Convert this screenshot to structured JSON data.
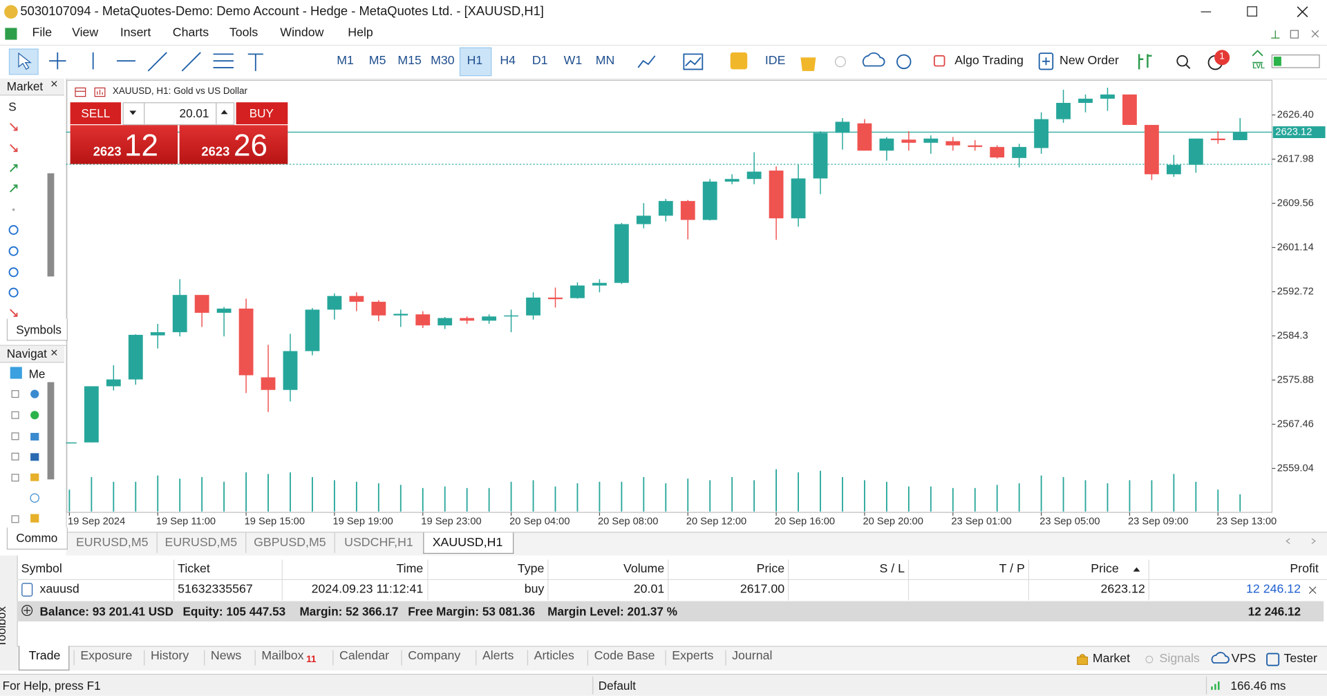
{
  "window": {
    "title": "5030107094 - MetaQuotes-Demo: Demo Account - Hedge - MetaQuotes Ltd. - [XAUUSD,H1]"
  },
  "menu": [
    "File",
    "View",
    "Insert",
    "Charts",
    "Tools",
    "Window",
    "Help"
  ],
  "timeframes": [
    "M1",
    "M5",
    "M15",
    "M30",
    "H1",
    "H4",
    "D1",
    "W1",
    "MN"
  ],
  "active_timeframe": 4,
  "toolbar": {
    "ide": "IDE",
    "algo_trading": "Algo Trading",
    "new_order": "New Order",
    "notifications": 1,
    "level": "LVL"
  },
  "market_watch": {
    "title": "Market",
    "column": "S",
    "tab": "Symbols"
  },
  "navigator": {
    "title": "Navigat",
    "root": "Me",
    "tab": "Commo"
  },
  "chart": {
    "type": "candlestick",
    "header": "XAUUSD, H1:  Gold vs US Dollar",
    "one_click": {
      "sell": "SELL",
      "buy": "BUY",
      "volume": "20.01",
      "bid_main": "2623",
      "bid_big": "12",
      "ask_main": "2623",
      "ask_big": "26"
    },
    "colors": {
      "up": "#26a69a",
      "down": "#ef5350"
    },
    "categories": [
      "19 Sep 2024",
      null,
      null,
      null,
      "19 Sep 11:00",
      null,
      null,
      null,
      "19 Sep 15:00",
      null,
      null,
      null,
      "19 Sep 19:00",
      null,
      null,
      null,
      "19 Sep 23:00",
      null,
      null,
      null,
      "20 Sep 04:00",
      null,
      null,
      null,
      "20 Sep 08:00",
      null,
      null,
      null,
      "20 Sep 12:00",
      null,
      null,
      null,
      "20 Sep 16:00",
      null,
      null,
      null,
      "20 Sep 20:00",
      null,
      null,
      null,
      "23 Sep 01:00",
      null,
      null,
      null,
      "23 Sep 05:00",
      null,
      null,
      null,
      "23 Sep 09:00",
      null,
      null,
      null,
      "23 Sep 13:00",
      null
    ],
    "open": [
      2564.0,
      2564.0,
      2574.7,
      2576.0,
      2584.4,
      2585.0,
      2592.1,
      2588.7,
      2589.5,
      2576.4,
      2574.0,
      2581.4,
      2589.3,
      2591.9,
      2590.8,
      2588.2,
      2588.4,
      2586.3,
      2587.7,
      2587.2,
      2588.0,
      2588.2,
      2591.6,
      2591.5,
      2593.9,
      2594.4,
      2605.6,
      2607.2,
      2610.0,
      2606.4,
      2613.7,
      2614.2,
      2615.8,
      2606.7,
      2614.3,
      2623.0,
      2624.8,
      2619.6,
      2621.7,
      2621.1,
      2621.4,
      2620.6,
      2620.3,
      2618.2,
      2620.1,
      2625.6,
      2628.7,
      2629.5,
      2630.3,
      2624.5,
      2615.1,
      2616.9,
      2621.9,
      2621.6
    ],
    "high": [
      2564.0,
      2574.7,
      2578.7,
      2584.6,
      2586.6,
      2595.1,
      2592.1,
      2589.8,
      2591.4,
      2582.6,
      2584.7,
      2589.6,
      2592.4,
      2592.6,
      2591.1,
      2589.3,
      2589.0,
      2587.9,
      2588.0,
      2588.4,
      2589.3,
      2592.6,
      2593.5,
      2594.5,
      2595.1,
      2605.8,
      2609.6,
      2610.4,
      2610.2,
      2614.2,
      2615.1,
      2619.3,
      2616.6,
      2616.9,
      2623.3,
      2625.8,
      2625.6,
      2622.2,
      2623.3,
      2622.5,
      2622.2,
      2621.6,
      2620.6,
      2620.9,
      2626.9,
      2631.2,
      2630.3,
      2631.6,
      2630.3,
      2624.5,
      2618.8,
      2621.9,
      2623.3,
      2625.8
    ],
    "low": [
      2563.8,
      2564.0,
      2573.9,
      2575.0,
      2581.9,
      2584.2,
      2586.0,
      2584.2,
      2573.4,
      2569.8,
      2571.8,
      2580.6,
      2587.4,
      2589.0,
      2587.1,
      2586.0,
      2585.8,
      2585.6,
      2586.6,
      2586.6,
      2585.0,
      2587.4,
      2589.7,
      2591.4,
      2592.6,
      2594.2,
      2604.8,
      2606.1,
      2602.7,
      2606.3,
      2613.2,
      2613.2,
      2602.6,
      2605.1,
      2611.3,
      2619.8,
      2619.6,
      2617.7,
      2619.6,
      2619.0,
      2619.6,
      2619.6,
      2618.1,
      2616.4,
      2619.0,
      2624.9,
      2626.9,
      2627.2,
      2624.5,
      2614.0,
      2614.6,
      2615.4,
      2620.9,
      2621.6
    ],
    "close": [
      2564.0,
      2574.7,
      2576.0,
      2584.5,
      2585.0,
      2592.1,
      2588.7,
      2589.5,
      2576.8,
      2574.0,
      2581.4,
      2589.3,
      2591.9,
      2590.8,
      2588.2,
      2588.5,
      2586.3,
      2587.7,
      2587.2,
      2588.0,
      2588.2,
      2591.6,
      2591.3,
      2593.9,
      2594.4,
      2605.6,
      2607.2,
      2610.0,
      2606.4,
      2613.7,
      2614.2,
      2615.6,
      2606.7,
      2614.3,
      2623.0,
      2625.1,
      2619.6,
      2621.9,
      2621.1,
      2621.9,
      2620.6,
      2620.3,
      2618.3,
      2620.3,
      2625.6,
      2628.7,
      2629.5,
      2630.3,
      2624.5,
      2615.1,
      2616.9,
      2621.9,
      2621.6,
      2623.12
    ],
    "volumes": [
      28,
      44,
      38,
      38,
      46,
      42,
      44,
      38,
      50,
      48,
      50,
      44,
      40,
      38,
      36,
      34,
      30,
      32,
      30,
      30,
      38,
      40,
      32,
      36,
      38,
      38,
      44,
      36,
      42,
      40,
      44,
      40,
      54,
      50,
      52,
      44,
      40,
      38,
      32,
      32,
      30,
      30,
      34,
      36,
      46,
      44,
      40,
      36,
      40,
      40,
      48,
      38,
      28,
      22
    ],
    "ylim": [
      2550.67,
      2633.0
    ],
    "yticks": [
      {
        "value": 2626.4,
        "label": "2626.40"
      },
      2617.98,
      2609.56,
      2601.14,
      2592.72,
      2584.3,
      2575.88,
      2567.46,
      2559.04
    ],
    "bid": 2623.12,
    "position_price": 2617
  },
  "chart_tabs": [
    "EURUSD,M5",
    "EURUSD,M5",
    "GBPUSD,M5",
    "USDCHF,H1",
    "XAUUSD,H1"
  ],
  "active_chart_tab": 4,
  "toolbox": {
    "label": "Toolbox",
    "columns": [
      "Symbol",
      "Ticket",
      "Time",
      "Type",
      "Volume",
      "Price",
      "S / L",
      "T / P",
      "Price",
      "Profit"
    ],
    "position": {
      "symbol": "xauusd",
      "ticket": "51632335567",
      "time": "2024.09.23 11:12:41",
      "type": "buy",
      "volume": "20.01",
      "price": "2617.00",
      "current_price": "2623.12",
      "profit": "12 246.12"
    },
    "summary": [
      "Balance: 93 201.41 USD",
      "Equity: 105 447.53",
      "Margin: 52 366.17",
      "Free Margin: 53 081.36",
      "Margin Level: 201.37 %"
    ],
    "summary_profit": "12 246.12",
    "tabs": [
      "Trade",
      "Exposure",
      "History",
      "News",
      "Mailbox",
      "Calendar",
      "Company",
      "Alerts",
      "Articles",
      "Code Base",
      "Experts",
      "Journal"
    ],
    "mailbox_count": 11,
    "services": [
      "Market",
      "Signals",
      "VPS",
      "Tester"
    ]
  },
  "status": {
    "help": "For Help, press F1",
    "profile": "Default",
    "ping": "166.46 ms"
  }
}
